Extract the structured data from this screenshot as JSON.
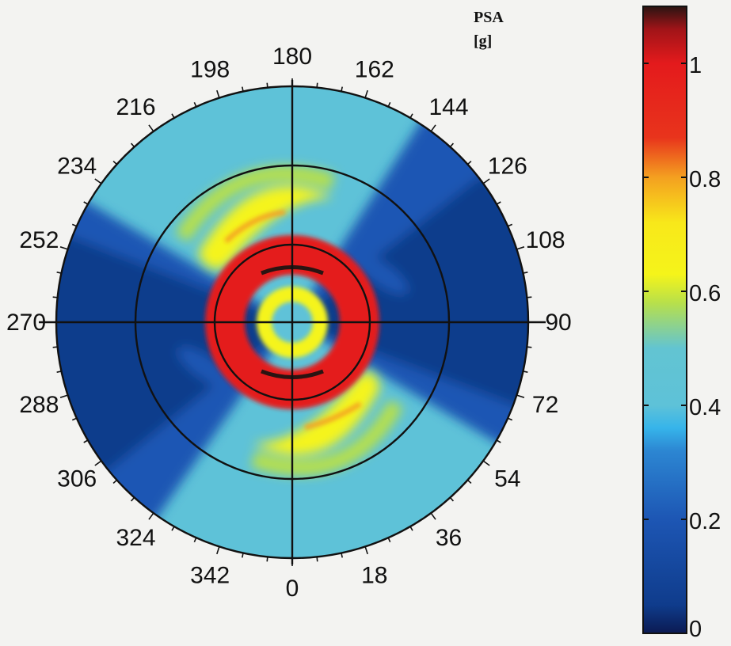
{
  "chart_data": {
    "type": "heatmap",
    "projection": "polar",
    "title": "",
    "colorbar": {
      "title_line1": "PSA",
      "title_line2": "[g]",
      "ticks": [
        "0",
        "0.2",
        "0.4",
        "0.6",
        "0.8",
        "1"
      ],
      "tick_values": [
        0,
        0.2,
        0.4,
        0.6,
        0.8,
        1
      ],
      "range": [
        0,
        1.1
      ],
      "colormap": "jet",
      "stops": [
        {
          "v": 0.0,
          "color": "#0b1a52"
        },
        {
          "v": 0.05,
          "color": "#0f3c8c"
        },
        {
          "v": 0.2,
          "color": "#1d56b4"
        },
        {
          "v": 0.32,
          "color": "#2c86d2"
        },
        {
          "v": 0.36,
          "color": "#36b4ea"
        },
        {
          "v": 0.4,
          "color": "#5ec2d8"
        },
        {
          "v": 0.5,
          "color": "#62c4d2"
        },
        {
          "v": 0.58,
          "color": "#b8e04a"
        },
        {
          "v": 0.63,
          "color": "#f5f41a"
        },
        {
          "v": 0.72,
          "color": "#f8e81a"
        },
        {
          "v": 0.8,
          "color": "#f4a020"
        },
        {
          "v": 0.87,
          "color": "#e8341c"
        },
        {
          "v": 1.0,
          "color": "#e41a1c"
        },
        {
          "v": 1.06,
          "color": "#a01418"
        },
        {
          "v": 1.1,
          "color": "#2a1412"
        }
      ]
    },
    "angular_axis": {
      "unit": "degrees",
      "labels": [
        "0",
        "18",
        "36",
        "54",
        "72",
        "90",
        "108",
        "126",
        "144",
        "162",
        "180",
        "198",
        "216",
        "234",
        "252",
        "270",
        "288",
        "306",
        "324",
        "342"
      ],
      "zero_direction": "bottom",
      "direction": "counterclockwise"
    },
    "radial_rings": 3,
    "grid": true,
    "regions": [
      {
        "name": "center",
        "psa": 0.42
      },
      {
        "name": "inner-ring-band",
        "psa": 1.0,
        "peak": 1.1
      },
      {
        "name": "spiral-arms",
        "psa": 0.65,
        "peak": 0.85
      },
      {
        "name": "middle-background",
        "psa": 0.45
      },
      {
        "name": "outer-lobes",
        "psa": 0.15
      }
    ]
  }
}
